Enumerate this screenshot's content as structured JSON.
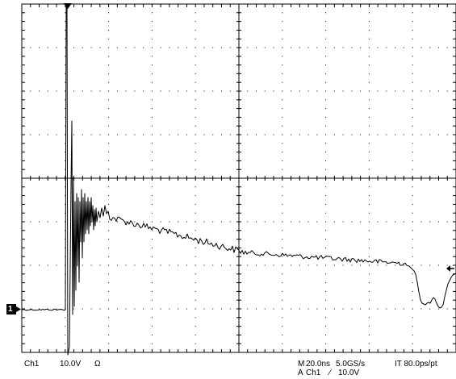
{
  "scope": {
    "grid": {
      "divisions_x": 10,
      "divisions_y": 8,
      "minor_per_division": 5
    },
    "channel": {
      "marker_label": "1",
      "label": "Ch1",
      "scale": "10.0V",
      "coupling_icon": "ohm-symbol",
      "coupling_symbol": "Ω"
    },
    "timebase": {
      "line1_prefix": "M",
      "timebase": "20.0ns",
      "sample_rate": "5.0GS/s",
      "interval": "IT 80.0ps/pt"
    },
    "trigger": {
      "prefix": "A",
      "source": "Ch1",
      "slope_icon": "rising-edge-icon",
      "slope_symbol": "∕",
      "level": "10.0V"
    },
    "marker_icons": {
      "trigger_position": "trigger-position-triangle-icon",
      "trigger_level": "trigger-level-arrow-icon",
      "channel_ground": "channel-1-ground-marker"
    }
  }
}
